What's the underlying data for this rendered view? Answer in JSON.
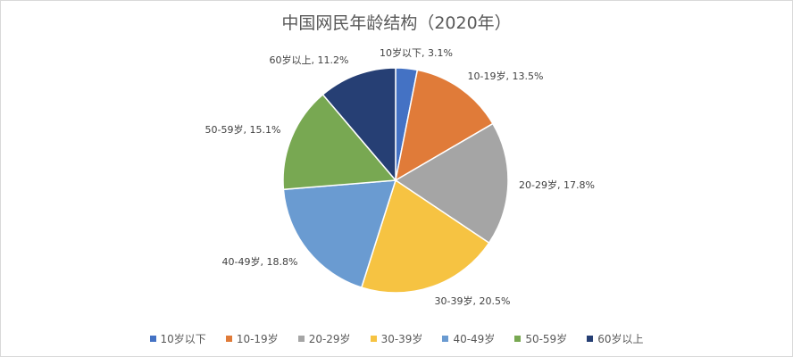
{
  "chart_data": {
    "type": "pie",
    "title": "中国网民年龄结构（2020年）",
    "categories": [
      "10岁以下",
      "10-19岁",
      "20-29岁",
      "30-39岁",
      "40-49岁",
      "50-59岁",
      "60岁以上"
    ],
    "values": [
      3.1,
      13.5,
      17.8,
      20.5,
      18.8,
      15.1,
      11.2
    ],
    "data_labels": [
      "10岁以下, 3.1%",
      "10-19岁, 13.5%",
      "20-29岁, 17.8%",
      "30-39岁, 20.5%",
      "40-49岁, 18.8%",
      "50-59岁, 15.1%",
      "60岁以上, 11.2%"
    ],
    "colors": [
      "#4472C4",
      "#E07B39",
      "#A5A5A5",
      "#F6C342",
      "#6A9BD1",
      "#78A852",
      "#263F74"
    ],
    "legend_position": "bottom"
  }
}
